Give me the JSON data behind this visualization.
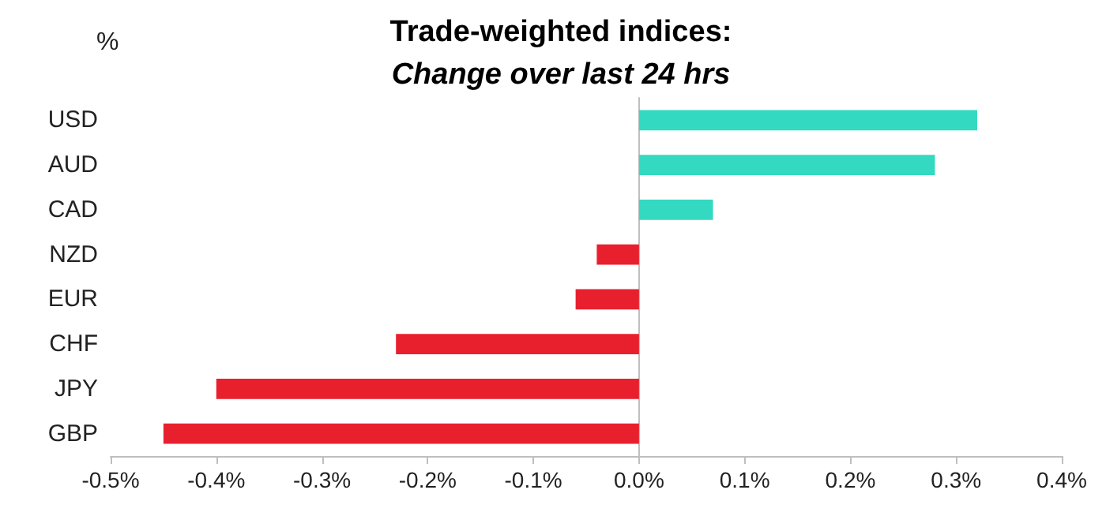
{
  "chart_data": {
    "type": "bar",
    "title": "Trade-weighted indices:",
    "subtitle": "Change over last 24 hrs",
    "ylabel": "%",
    "categories": [
      "USD",
      "AUD",
      "CAD",
      "NZD",
      "EUR",
      "CHF",
      "JPY",
      "GBP"
    ],
    "values": [
      0.32,
      0.28,
      0.07,
      -0.04,
      -0.06,
      -0.23,
      -0.4,
      -0.45
    ],
    "colors": [
      "#33d9c1",
      "#33d9c1",
      "#33d9c1",
      "#e8202e",
      "#e8202e",
      "#e8202e",
      "#e8202e",
      "#e8202e"
    ],
    "xlim": [
      -0.5,
      0.4
    ],
    "xticks": [
      {
        "value": -0.5,
        "label": "-0.5%"
      },
      {
        "value": -0.4,
        "label": "-0.4%"
      },
      {
        "value": -0.3,
        "label": "-0.3%"
      },
      {
        "value": -0.2,
        "label": "-0.2%"
      },
      {
        "value": -0.1,
        "label": "-0.1%"
      },
      {
        "value": 0,
        "label": "0.0%"
      },
      {
        "value": 0.1,
        "label": "0.1%"
      },
      {
        "value": 0.2,
        "label": "0.2%"
      },
      {
        "value": 0.3,
        "label": "0.3%"
      },
      {
        "value": 0.4,
        "label": "0.4%"
      }
    ],
    "orientation": "horizontal"
  }
}
